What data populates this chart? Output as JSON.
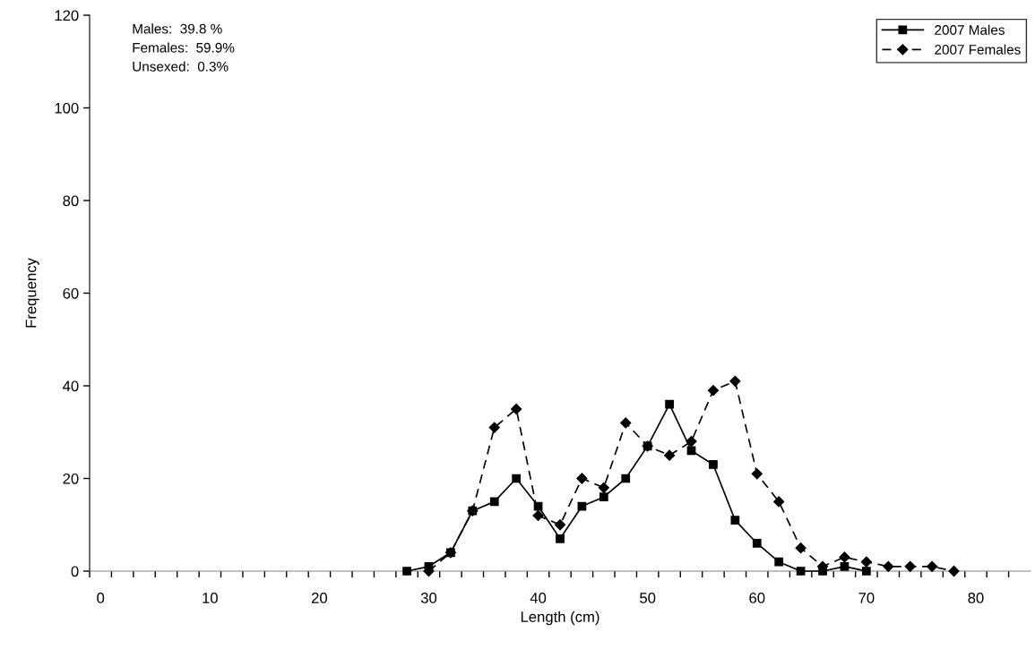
{
  "chart_data": {
    "type": "line",
    "xlabel": "Length (cm)",
    "ylabel": "Frequency",
    "xlim": [
      -1,
      85
    ],
    "ylim": [
      0,
      120
    ],
    "xticks": [
      {
        "value": -1,
        "label": null
      },
      {
        "value": 0,
        "label": "0"
      },
      {
        "value": 1,
        "label": null
      },
      {
        "value": 3,
        "label": null
      },
      {
        "value": 5,
        "label": null
      },
      {
        "value": 7,
        "label": null
      },
      {
        "value": 9,
        "label": null
      },
      {
        "value": 10,
        "label": "10"
      },
      {
        "value": 11,
        "label": null
      },
      {
        "value": 13,
        "label": null
      },
      {
        "value": 15,
        "label": null
      },
      {
        "value": 17,
        "label": null
      },
      {
        "value": 19,
        "label": null
      },
      {
        "value": 20,
        "label": "20"
      },
      {
        "value": 21,
        "label": null
      },
      {
        "value": 23,
        "label": null
      },
      {
        "value": 25,
        "label": null
      },
      {
        "value": 27,
        "label": null
      },
      {
        "value": 29,
        "label": null
      },
      {
        "value": 30,
        "label": "30"
      },
      {
        "value": 31,
        "label": null
      },
      {
        "value": 33,
        "label": null
      },
      {
        "value": 35,
        "label": null
      },
      {
        "value": 37,
        "label": null
      },
      {
        "value": 39,
        "label": null
      },
      {
        "value": 40,
        "label": "40"
      },
      {
        "value": 41,
        "label": null
      },
      {
        "value": 43,
        "label": null
      },
      {
        "value": 45,
        "label": null
      },
      {
        "value": 47,
        "label": null
      },
      {
        "value": 49,
        "label": null
      },
      {
        "value": 50,
        "label": "50"
      },
      {
        "value": 51,
        "label": null
      },
      {
        "value": 53,
        "label": null
      },
      {
        "value": 55,
        "label": null
      },
      {
        "value": 57,
        "label": null
      },
      {
        "value": 59,
        "label": null
      },
      {
        "value": 60,
        "label": "60"
      },
      {
        "value": 61,
        "label": null
      },
      {
        "value": 63,
        "label": null
      },
      {
        "value": 65,
        "label": null
      },
      {
        "value": 67,
        "label": null
      },
      {
        "value": 69,
        "label": null
      },
      {
        "value": 70,
        "label": "70"
      },
      {
        "value": 71,
        "label": null
      },
      {
        "value": 73,
        "label": null
      },
      {
        "value": 75,
        "label": null
      },
      {
        "value": 77,
        "label": null
      },
      {
        "value": 79,
        "label": null
      },
      {
        "value": 80,
        "label": "80"
      },
      {
        "value": 81,
        "label": null
      },
      {
        "value": 83,
        "label": null
      }
    ],
    "yticks": [
      0,
      20,
      40,
      60,
      80,
      100,
      120
    ],
    "grid": false,
    "legend": "top right",
    "annotations": [
      "Males:  39.8 %",
      "Females:  59.9%",
      "Unsexed:  0.3%"
    ],
    "series": [
      {
        "name": "2007 Males",
        "color": "#000000",
        "marker": "square",
        "line_style": "solid",
        "x": [
          28,
          30,
          32,
          34,
          36,
          38,
          40,
          42,
          44,
          46,
          48,
          50,
          52,
          54,
          56,
          58,
          60,
          62,
          64,
          66,
          68,
          70
        ],
        "values": [
          0,
          1,
          4,
          13,
          15,
          20,
          14,
          7,
          14,
          16,
          20,
          27,
          36,
          26,
          23,
          11,
          6,
          2,
          0,
          0,
          1,
          0
        ]
      },
      {
        "name": "2007 Females",
        "color": "#000000",
        "marker": "diamond",
        "line_style": "dashed",
        "x": [
          30,
          32,
          34,
          36,
          38,
          40,
          42,
          44,
          46,
          48,
          50,
          52,
          54,
          56,
          58,
          60,
          62,
          64,
          66,
          68,
          70,
          72,
          74,
          76,
          78
        ],
        "values": [
          0,
          4,
          13,
          31,
          35,
          12,
          10,
          20,
          18,
          32,
          27,
          25,
          28,
          39,
          41,
          21,
          15,
          5,
          1,
          3,
          2,
          1,
          1,
          1,
          0
        ]
      }
    ]
  }
}
